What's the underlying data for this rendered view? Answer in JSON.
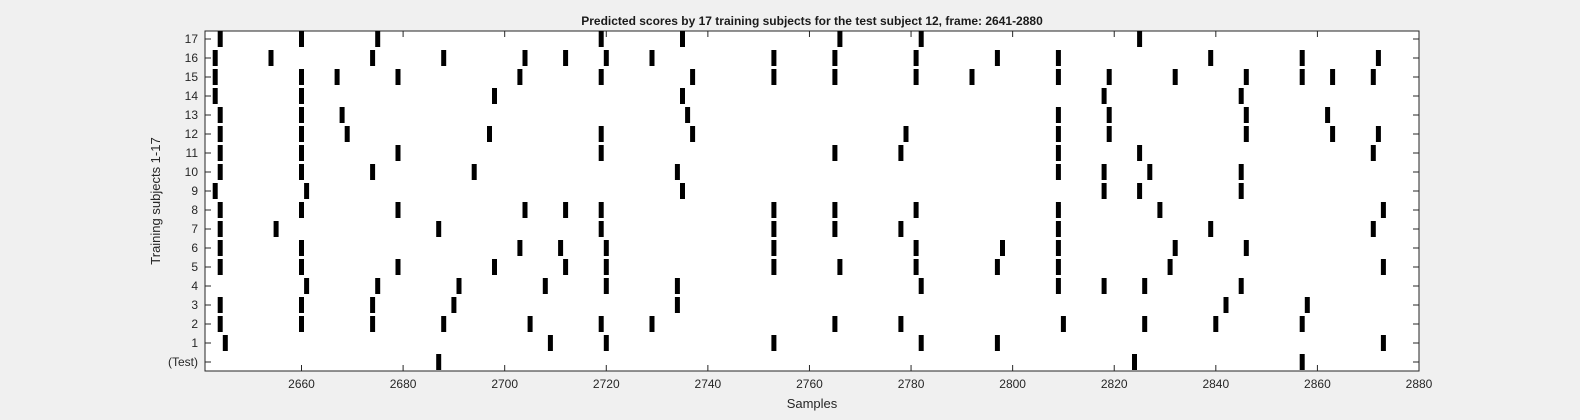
{
  "chart_data": {
    "type": "scatter",
    "title": "Predicted scores by 17 training subjects for the test subject 12, frame: 2641-2880",
    "xlabel": "Samples",
    "ylabel": "Training subjects 1-17",
    "xlim": [
      2641,
      2880
    ],
    "x_ticks": [
      2660,
      2680,
      2700,
      2720,
      2740,
      2760,
      2780,
      2800,
      2820,
      2840,
      2860,
      2880
    ],
    "row_labels": [
      "(Test)",
      "1",
      "2",
      "3",
      "4",
      "5",
      "6",
      "7",
      "8",
      "9",
      "10",
      "11",
      "12",
      "13",
      "14",
      "15",
      "16",
      "17"
    ],
    "mark_color": "#000000",
    "grid": false,
    "series": [
      {
        "row": "(Test)",
        "x": [
          2687,
          2824,
          2857
        ]
      },
      {
        "row": "1",
        "x": [
          2645,
          2709,
          2720,
          2753,
          2782,
          2797,
          2873
        ]
      },
      {
        "row": "2",
        "x": [
          2644,
          2660,
          2674,
          2688,
          2705,
          2719,
          2729,
          2765,
          2778,
          2810,
          2826,
          2840,
          2857
        ]
      },
      {
        "row": "3",
        "x": [
          2644,
          2660,
          2674,
          2690,
          2734,
          2842,
          2858
        ]
      },
      {
        "row": "4",
        "x": [
          2661,
          2675,
          2691,
          2708,
          2720,
          2734,
          2782,
          2809,
          2818,
          2826,
          2845
        ]
      },
      {
        "row": "5",
        "x": [
          2644,
          2660,
          2679,
          2698,
          2712,
          2720,
          2753,
          2766,
          2781,
          2797,
          2809,
          2831,
          2873
        ]
      },
      {
        "row": "6",
        "x": [
          2644,
          2660,
          2703,
          2711,
          2720,
          2753,
          2781,
          2798,
          2809,
          2832,
          2846
        ]
      },
      {
        "row": "7",
        "x": [
          2644,
          2655,
          2687,
          2719,
          2753,
          2765,
          2778,
          2809,
          2839,
          2871
        ]
      },
      {
        "row": "8",
        "x": [
          2644,
          2660,
          2679,
          2704,
          2712,
          2719,
          2753,
          2765,
          2781,
          2809,
          2829,
          2873
        ]
      },
      {
        "row": "9",
        "x": [
          2643,
          2661,
          2735,
          2818,
          2825,
          2845
        ]
      },
      {
        "row": "10",
        "x": [
          2644,
          2660,
          2674,
          2694,
          2734,
          2809,
          2818,
          2827,
          2845
        ]
      },
      {
        "row": "11",
        "x": [
          2644,
          2660,
          2679,
          2719,
          2765,
          2778,
          2809,
          2825,
          2871
        ]
      },
      {
        "row": "12",
        "x": [
          2644,
          2660,
          2669,
          2697,
          2719,
          2737,
          2779,
          2809,
          2819,
          2846,
          2863,
          2872
        ]
      },
      {
        "row": "13",
        "x": [
          2644,
          2660,
          2668,
          2736,
          2809,
          2819,
          2846,
          2862
        ]
      },
      {
        "row": "14",
        "x": [
          2643,
          2660,
          2698,
          2735,
          2818,
          2845
        ]
      },
      {
        "row": "15",
        "x": [
          2643,
          2660,
          2667,
          2679,
          2703,
          2719,
          2737,
          2753,
          2765,
          2781,
          2792,
          2809,
          2819,
          2832,
          2846,
          2857,
          2863,
          2871
        ]
      },
      {
        "row": "16",
        "x": [
          2643,
          2654,
          2674,
          2688,
          2704,
          2712,
          2720,
          2729,
          2753,
          2765,
          2781,
          2797,
          2809,
          2839,
          2857,
          2872
        ]
      },
      {
        "row": "17",
        "x": [
          2644,
          2660,
          2675,
          2719,
          2735,
          2766,
          2782,
          2825
        ]
      }
    ]
  }
}
